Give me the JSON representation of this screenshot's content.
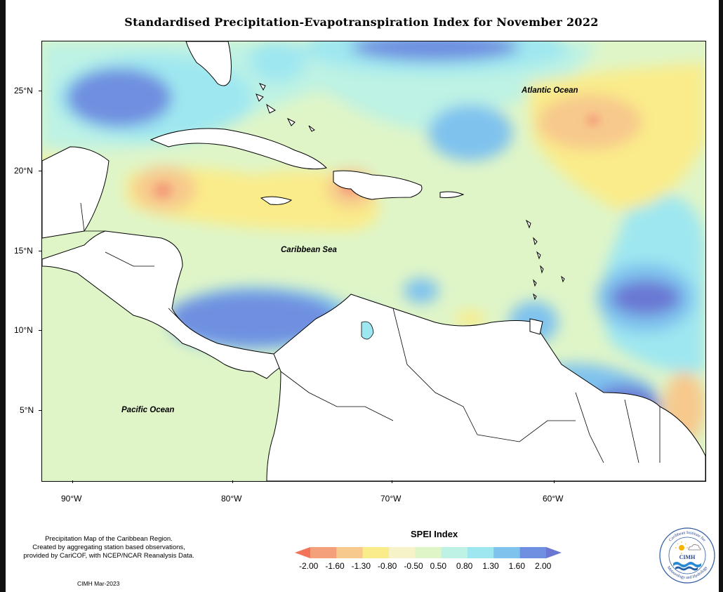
{
  "title": "Standardised Precipitation-Evapotranspiration Index for November 2022",
  "map_labels": {
    "atlantic": "Atlantic Ocean",
    "caribbean": "Caribbean Sea",
    "pacific": "Pacific Ocean"
  },
  "axes": {
    "lat_ticks": [
      "25°N",
      "20°N",
      "15°N",
      "10°N",
      "5°N"
    ],
    "lon_ticks": [
      "90°W",
      "80°W",
      "70°W",
      "60°W"
    ]
  },
  "legend": {
    "title": "SPEI Index",
    "labels": [
      "-2.00",
      "-1.60",
      "-1.30",
      "-0.80",
      "-0.50",
      "0.50",
      "0.80",
      "1.30",
      "1.60",
      "2.00"
    ],
    "colors": [
      "#f1735a",
      "#f4a07b",
      "#f7c98c",
      "#faec8a",
      "#f7f3c8",
      "#dff5c8",
      "#bdf2e4",
      "#9fe7f0",
      "#7fc2ee",
      "#6f8fe0",
      "#6a78d4"
    ]
  },
  "notes": {
    "description_lines": [
      "Precipitation Map of the Caribbean Region.",
      "Created by aggregating station based observations,",
      "provided by CariCOF, with NCEP/NCAR Reanalysis Data."
    ],
    "credit": "CIMH Mar-2023"
  },
  "logo": {
    "abbrev": "CIMH",
    "ring_text_top": "Caribbean Institute for",
    "ring_text_bottom": "Meteorology and Hydrology"
  }
}
